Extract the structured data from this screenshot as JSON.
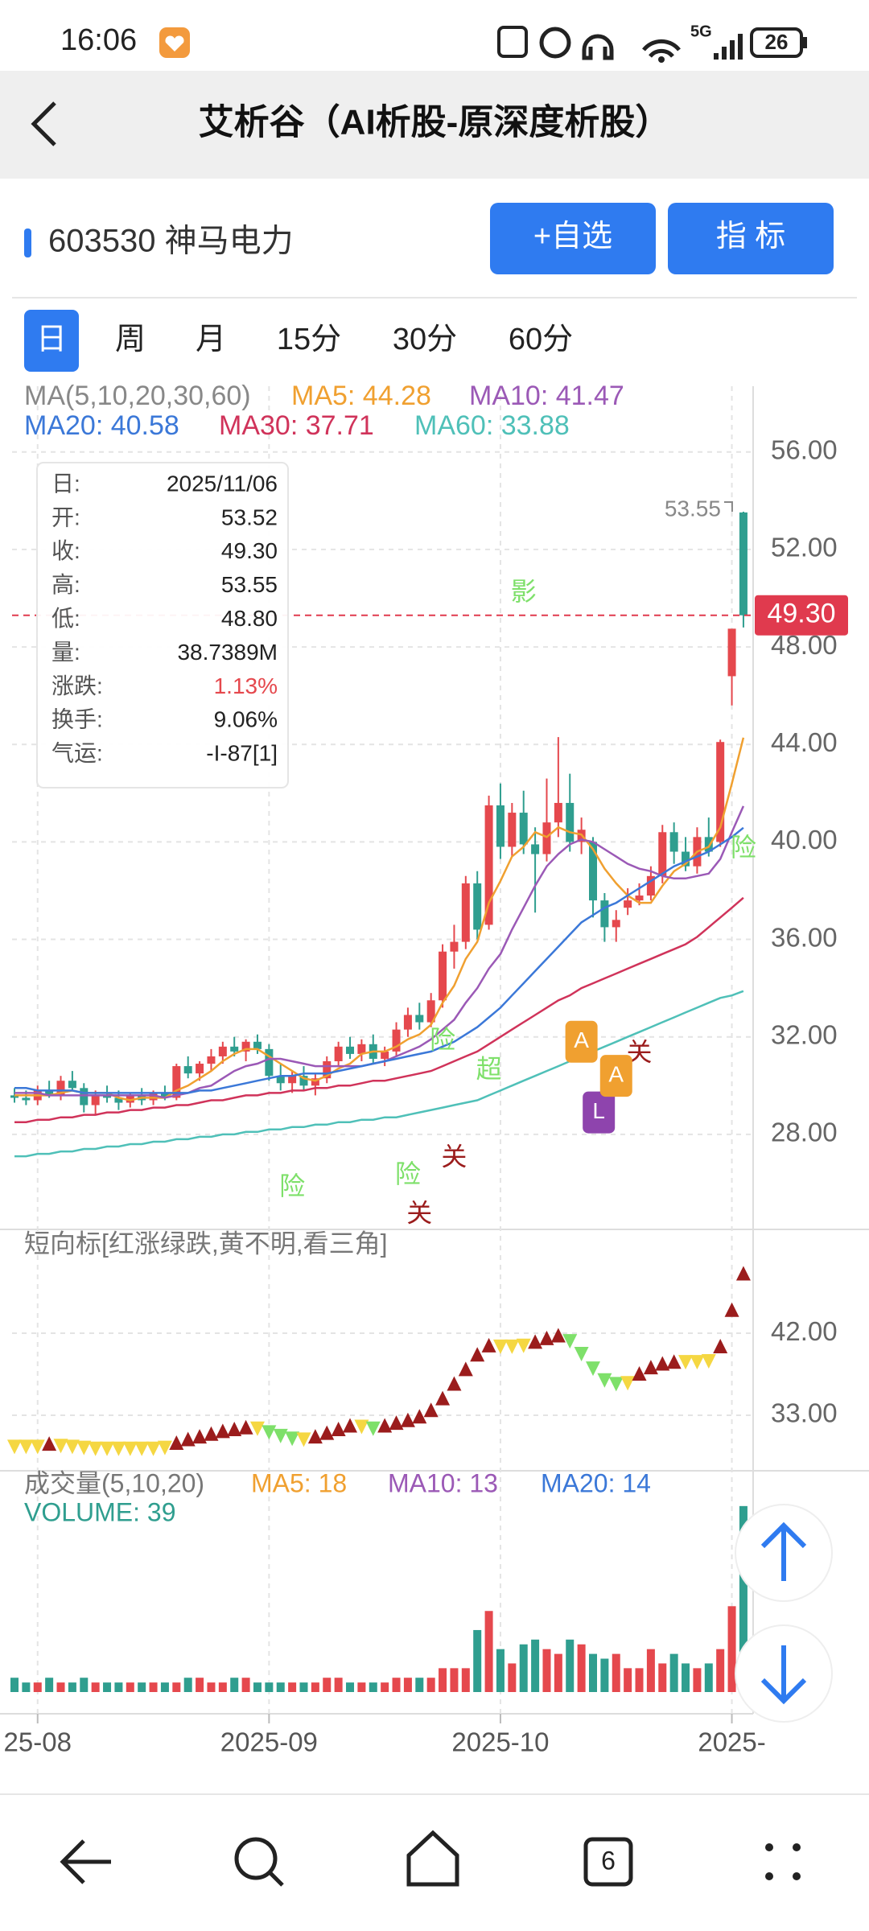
{
  "status_bar": {
    "time": "16:06",
    "network": "5G",
    "battery": "26"
  },
  "header": {
    "title": "艾析谷（AI析股-原深度析股）"
  },
  "stock": {
    "label": "603530 神马电力",
    "buttons": [
      "+自选",
      "指 标"
    ]
  },
  "tabs": {
    "items": [
      "日",
      "周",
      "月",
      "15分",
      "30分",
      "60分"
    ],
    "selected": 0
  },
  "nav": {
    "tab_count": "6"
  },
  "chart_data": [
    {
      "type": "candlestick",
      "legend_title": "MA(5,10,20,30,60)",
      "categories": [
        null,
        null,
        "25-08",
        null,
        null,
        null,
        null,
        null,
        null,
        null,
        null,
        null,
        null,
        null,
        null,
        null,
        null,
        null,
        null,
        null,
        null,
        null,
        "2025-09",
        null,
        null,
        null,
        null,
        null,
        null,
        null,
        null,
        null,
        null,
        null,
        null,
        null,
        null,
        null,
        null,
        null,
        null,
        null,
        "2025-10",
        null,
        null,
        null,
        null,
        null,
        null,
        null,
        null,
        null,
        null,
        null,
        null,
        null,
        null,
        null,
        null,
        null,
        null,
        null,
        "2025-",
        null
      ],
      "open": [
        29.6,
        29.5,
        29.4,
        29.8,
        29.6,
        30.2,
        29.9,
        29.2,
        29.6,
        29.5,
        29.3,
        29.6,
        29.4,
        29.7,
        29.5,
        30.8,
        30.5,
        30.9,
        31.2,
        31.6,
        31.4,
        31.8,
        31.5,
        30.4,
        30.1,
        30.4,
        30.0,
        30.3,
        31.0,
        31.6,
        31.3,
        31.7,
        31.1,
        31.4,
        32.3,
        32.9,
        32.6,
        33.5,
        35.5,
        35.9,
        38.3,
        36.6,
        41.5,
        39.8,
        41.2,
        39.9,
        39.5,
        40.8,
        41.6,
        40.0,
        40.0,
        37.6,
        36.5,
        37.3,
        37.6,
        37.8,
        38.6,
        40.4,
        39.6,
        39.0,
        40.2,
        40.0,
        46.8,
        53.52
      ],
      "high": [
        29.9,
        29.8,
        30.0,
        30.2,
        30.4,
        30.6,
        30.1,
        29.8,
        30.0,
        29.8,
        29.7,
        29.9,
        29.8,
        30.0,
        30.9,
        31.2,
        31.0,
        31.5,
        31.8,
        32.0,
        31.9,
        32.1,
        31.7,
        30.9,
        30.6,
        30.8,
        30.5,
        31.2,
        31.8,
        32.0,
        31.9,
        32.1,
        31.6,
        32.6,
        33.2,
        33.4,
        33.8,
        35.8,
        36.6,
        38.6,
        38.8,
        41.9,
        42.4,
        41.6,
        42.1,
        40.6,
        42.6,
        44.3,
        42.8,
        41.0,
        40.2,
        37.9,
        37.2,
        38.1,
        38.3,
        39.0,
        40.7,
        40.8,
        40.2,
        40.6,
        41.0,
        44.2,
        48.7,
        53.55
      ],
      "low": [
        29.3,
        29.2,
        29.2,
        29.5,
        29.4,
        29.8,
        28.9,
        28.8,
        29.3,
        29.0,
        29.1,
        29.2,
        29.2,
        29.4,
        29.4,
        30.3,
        30.2,
        30.6,
        30.9,
        31.2,
        31.0,
        31.3,
        30.2,
        29.8,
        29.7,
        29.8,
        29.6,
        30.1,
        30.8,
        31.1,
        31.0,
        30.9,
        30.8,
        31.2,
        32.0,
        32.3,
        32.4,
        33.2,
        34.8,
        35.6,
        36.0,
        36.4,
        39.3,
        39.4,
        39.5,
        37.1,
        39.2,
        40.2,
        39.6,
        39.5,
        36.9,
        35.9,
        35.9,
        37.0,
        37.4,
        37.6,
        38.3,
        39.1,
        38.8,
        38.7,
        39.4,
        39.8,
        45.6,
        48.8
      ],
      "close": [
        29.5,
        29.4,
        29.8,
        29.6,
        30.2,
        29.9,
        29.2,
        29.6,
        29.5,
        29.3,
        29.6,
        29.4,
        29.7,
        29.5,
        30.8,
        30.5,
        30.9,
        31.2,
        31.6,
        31.4,
        31.8,
        31.5,
        30.4,
        30.1,
        30.4,
        30.0,
        30.3,
        31.0,
        31.6,
        31.3,
        31.7,
        31.1,
        31.4,
        32.3,
        32.9,
        32.6,
        33.5,
        35.5,
        35.9,
        38.3,
        36.4,
        41.5,
        39.8,
        41.2,
        39.9,
        39.5,
        40.8,
        41.6,
        40.0,
        40.5,
        37.6,
        36.5,
        36.8,
        37.6,
        37.8,
        38.6,
        40.4,
        39.6,
        39.0,
        40.2,
        39.6,
        44.1,
        48.75,
        49.3
      ],
      "up_color": "#e5484d",
      "down_color": "#2f9e8f",
      "series": [
        {
          "name": "MA5: 44.28",
          "color": "#f0a030",
          "values": [
            29.6,
            29.6,
            29.6,
            29.6,
            29.7,
            29.8,
            29.7,
            29.7,
            29.7,
            29.5,
            29.4,
            29.5,
            29.5,
            29.5,
            29.8,
            30.0,
            30.3,
            30.6,
            31.0,
            31.3,
            31.5,
            31.5,
            31.2,
            30.9,
            30.6,
            30.3,
            30.2,
            30.4,
            30.7,
            30.9,
            31.3,
            31.4,
            31.4,
            31.6,
            31.9,
            32.1,
            32.5,
            33.4,
            34.1,
            35.2,
            35.9,
            37.5,
            38.4,
            39.4,
            39.8,
            40.4,
            40.2,
            40.6,
            40.4,
            40.3,
            39.7,
            38.9,
            38.3,
            37.8,
            37.5,
            37.5,
            38.2,
            38.8,
            39.1,
            39.6,
            39.8,
            40.6,
            42.4,
            44.28
          ]
        },
        {
          "name": "MA10: 41.47",
          "color": "#9b59b6",
          "values": [
            29.7,
            29.7,
            29.7,
            29.6,
            29.6,
            29.6,
            29.6,
            29.6,
            29.6,
            29.6,
            29.6,
            29.6,
            29.6,
            29.5,
            29.6,
            29.7,
            29.9,
            30.0,
            30.3,
            30.6,
            30.8,
            30.9,
            31.1,
            31.1,
            31.0,
            30.9,
            30.8,
            30.8,
            30.8,
            30.8,
            30.8,
            30.9,
            31.0,
            31.2,
            31.4,
            31.6,
            31.9,
            32.3,
            32.7,
            33.4,
            34.0,
            34.8,
            35.4,
            36.4,
            37.3,
            38.2,
            39.0,
            39.5,
            39.9,
            40.1,
            40.0,
            39.7,
            39.4,
            39.1,
            38.9,
            38.8,
            38.6,
            38.5,
            38.5,
            38.6,
            38.7,
            39.3,
            40.4,
            41.47
          ]
        },
        {
          "name": "MA20: 40.58",
          "color": "#3b78d8",
          "values": [
            29.9,
            29.9,
            29.8,
            29.8,
            29.8,
            29.8,
            29.7,
            29.7,
            29.7,
            29.7,
            29.7,
            29.7,
            29.7,
            29.7,
            29.7,
            29.7,
            29.8,
            29.8,
            29.9,
            30.0,
            30.1,
            30.2,
            30.3,
            30.4,
            30.4,
            30.5,
            30.5,
            30.5,
            30.6,
            30.7,
            30.8,
            30.9,
            31.0,
            31.1,
            31.2,
            31.3,
            31.4,
            31.6,
            31.8,
            32.1,
            32.4,
            32.8,
            33.2,
            33.7,
            34.2,
            34.7,
            35.2,
            35.7,
            36.2,
            36.7,
            37.0,
            37.3,
            37.5,
            37.8,
            38.1,
            38.4,
            38.7,
            39.0,
            39.2,
            39.4,
            39.6,
            39.9,
            40.2,
            40.58
          ]
        },
        {
          "name": "MA30: 37.71",
          "color": "#d0335a",
          "values": [
            28.5,
            28.5,
            28.6,
            28.6,
            28.7,
            28.7,
            28.8,
            28.8,
            28.9,
            28.9,
            29.0,
            29.0,
            29.1,
            29.1,
            29.2,
            29.2,
            29.3,
            29.4,
            29.4,
            29.5,
            29.6,
            29.6,
            29.7,
            29.7,
            29.8,
            29.8,
            29.9,
            29.9,
            30.0,
            30.0,
            30.1,
            30.2,
            30.2,
            30.3,
            30.4,
            30.5,
            30.6,
            30.8,
            31.0,
            31.2,
            31.4,
            31.7,
            32.0,
            32.3,
            32.6,
            32.9,
            33.2,
            33.5,
            33.7,
            34.0,
            34.2,
            34.4,
            34.6,
            34.8,
            35.0,
            35.2,
            35.4,
            35.6,
            35.8,
            36.1,
            36.5,
            36.9,
            37.3,
            37.71
          ]
        },
        {
          "name": "MA60: 33.88",
          "color": "#4fc0b8",
          "values": [
            27.1,
            27.1,
            27.2,
            27.2,
            27.3,
            27.3,
            27.4,
            27.4,
            27.5,
            27.5,
            27.6,
            27.6,
            27.7,
            27.7,
            27.8,
            27.8,
            27.9,
            27.9,
            28.0,
            28.0,
            28.1,
            28.1,
            28.2,
            28.2,
            28.3,
            28.3,
            28.4,
            28.4,
            28.5,
            28.5,
            28.6,
            28.6,
            28.7,
            28.7,
            28.8,
            28.9,
            29.0,
            29.1,
            29.2,
            29.3,
            29.4,
            29.6,
            29.8,
            30.0,
            30.2,
            30.4,
            30.6,
            30.8,
            31.0,
            31.2,
            31.4,
            31.6,
            31.8,
            32.0,
            32.2,
            32.4,
            32.6,
            32.8,
            33.0,
            33.2,
            33.4,
            33.6,
            33.7,
            33.88
          ]
        }
      ],
      "ylim": [
        24.1,
        58.7
      ],
      "yticks": [
        {
          "value": 28,
          "label": "28.00"
        },
        {
          "value": 32,
          "label": "32.00"
        },
        {
          "value": 36,
          "label": "36.00"
        },
        {
          "value": 40,
          "label": "40.00"
        },
        {
          "value": 44,
          "label": "44.00"
        },
        {
          "value": 48,
          "label": "48.00"
        },
        {
          "value": 52,
          "label": "52.00"
        },
        {
          "value": 56,
          "label": "56.00"
        }
      ],
      "grid": true,
      "current_price": {
        "value": 49.3,
        "label": "49.30"
      },
      "high_label": {
        "value": 53.55,
        "label": "53.55"
      },
      "annotations": [
        {
          "text": "影",
          "x": 44,
          "y": 50.2,
          "color": "#7ee06a"
        },
        {
          "text": "超",
          "x": 41,
          "y": 30.6,
          "color": "#7ee06a"
        },
        {
          "text": "险",
          "x": 37,
          "y": 31.8,
          "color": "#7ee06a"
        },
        {
          "text": "险",
          "x": 63,
          "y": 39.7,
          "color": "#7ee06a"
        },
        {
          "text": "险",
          "x": 24,
          "y": 25.8,
          "color": "#7ee06a"
        },
        {
          "text": "险",
          "x": 34,
          "y": 26.3,
          "color": "#7ee06a"
        },
        {
          "text": "关",
          "x": 54,
          "y": 31.3,
          "color": "#9b1c1c"
        },
        {
          "text": "关",
          "x": 38,
          "y": 27.0,
          "color": "#9b1c1c"
        },
        {
          "text": "关",
          "x": 35,
          "y": 24.7,
          "color": "#9b1c1c"
        },
        {
          "text": "A",
          "x": 49,
          "y": 31.8,
          "color": "#f0a030",
          "box": true
        },
        {
          "text": "L",
          "x": 50.5,
          "y": 28.9,
          "color": "#8e44ad",
          "box": true
        },
        {
          "text": "A",
          "x": 52,
          "y": 30.4,
          "color": "#f0a030",
          "box": true
        }
      ],
      "tooltip": [
        {
          "label": "日:",
          "value": "2025/11/06"
        },
        {
          "label": "开:",
          "value": "53.52"
        },
        {
          "label": "收:",
          "value": "49.30"
        },
        {
          "label": "高:",
          "value": "53.55"
        },
        {
          "label": "低:",
          "value": "48.80"
        },
        {
          "label": "量:",
          "value": "38.7389M"
        },
        {
          "label": "涨跌:",
          "value": "1.13%",
          "color": "#e5484d"
        },
        {
          "label": "换手:",
          "value": "9.06%"
        },
        {
          "label": "气运:",
          "value": "-I-87[1]"
        }
      ]
    },
    {
      "type": "triangle",
      "title": "短向标[红涨绿跌,黄不明,看三角]",
      "values": [
        29.6,
        29.6,
        29.6,
        29.8,
        29.7,
        29.6,
        29.5,
        29.4,
        29.4,
        29.4,
        29.4,
        29.4,
        29.4,
        29.5,
        29.9,
        30.3,
        30.6,
        30.9,
        31.2,
        31.4,
        31.6,
        31.6,
        31.2,
        30.8,
        30.5,
        30.4,
        30.6,
        31.0,
        31.4,
        31.8,
        31.8,
        31.6,
        31.8,
        32.1,
        32.4,
        32.8,
        33.5,
        34.8,
        36.4,
        38.0,
        39.6,
        40.6,
        40.6,
        40.6,
        40.7,
        41.0,
        41.4,
        41.7,
        41.2,
        39.8,
        38.2,
        36.9,
        36.5,
        36.6,
        37.5,
        38.2,
        38.6,
        38.8,
        38.9,
        38.9,
        39.0,
        40.5,
        44.5,
        48.5
      ],
      "colors": {
        "up": "#9b1c1c",
        "down": "#7ee06a",
        "flat": "#f5d742"
      },
      "ylim": [
        26.9,
        53.4
      ],
      "yticks": [
        {
          "value": 33,
          "label": "33.00"
        },
        {
          "value": 42,
          "label": "42.00"
        }
      ]
    },
    {
      "type": "bar",
      "title": "成交量(5,10,20)",
      "legend": [
        {
          "text": "MA5: 18",
          "color": "#f0a030"
        },
        {
          "text": "MA10: 13",
          "color": "#9b59b6"
        },
        {
          "text": "MA20: 14",
          "color": "#3b78d8"
        }
      ],
      "series": [
        {
          "name": "VOLUME: 39",
          "color": "#2f9e8f",
          "values": [
            3,
            2,
            2,
            3,
            2,
            2,
            3,
            2,
            2,
            2,
            2,
            2,
            2,
            2,
            2,
            3,
            3,
            2,
            2,
            3,
            3,
            2,
            2,
            2,
            2,
            2,
            2,
            3,
            3,
            2,
            2,
            2,
            2,
            3,
            3,
            3,
            3,
            5,
            5,
            5,
            13,
            17,
            9,
            6,
            10,
            11,
            9,
            8,
            11,
            10,
            8,
            7,
            8,
            5,
            5,
            9,
            6,
            8,
            6,
            5,
            6,
            9,
            18,
            39
          ]
        }
      ],
      "ylim": [
        0,
        41
      ]
    }
  ]
}
